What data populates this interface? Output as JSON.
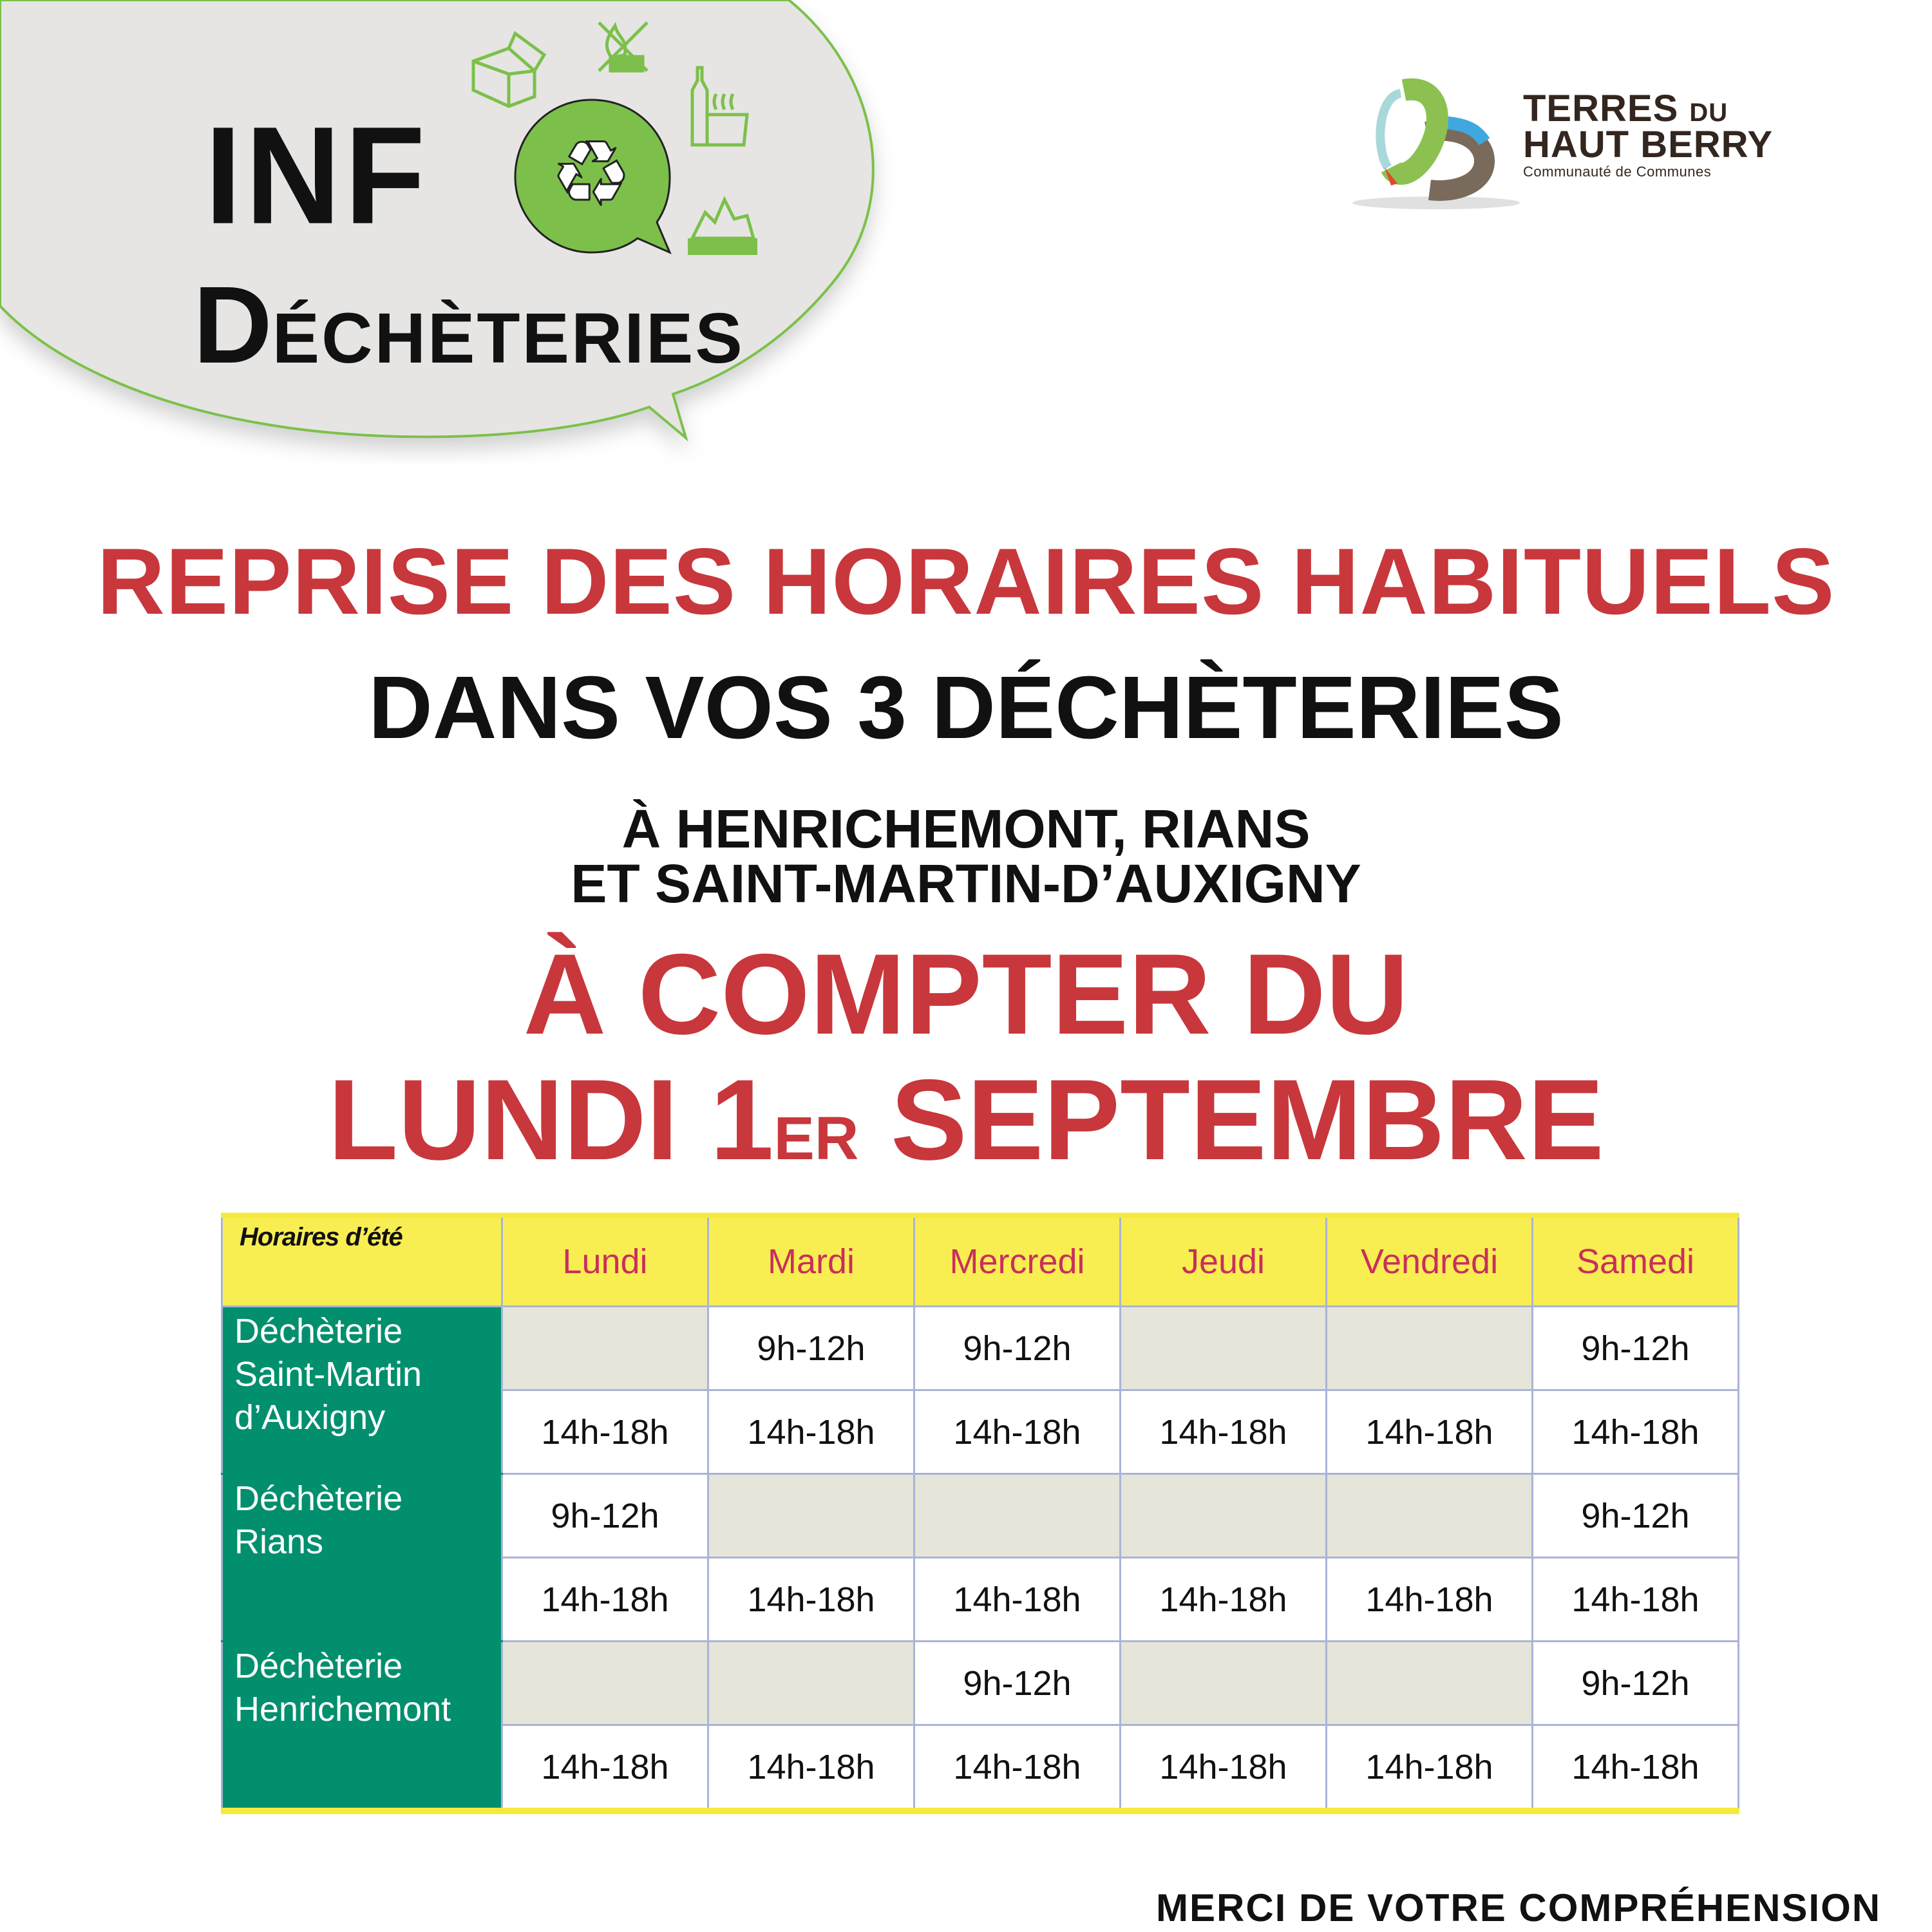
{
  "header": {
    "badge_line1": "INF",
    "badge_line2_first": "D",
    "badge_line2_rest": "ÉCHÈTERIES",
    "icons": [
      "cardboard-box-icon",
      "no-burning-icon",
      "bottle-pot-icon",
      "recycle-icon",
      "rubble-pile-icon"
    ],
    "bubble_fill": "#e6e5e3",
    "bubble_stroke": "#7cc04b",
    "icon_green": "#7cc04b"
  },
  "logo": {
    "line1": "TERRES",
    "line1_small": "DU",
    "line2": "HAUT BERRY",
    "line3": "Communauté de Communes"
  },
  "announcement": {
    "title": "REPRISE DES HORAIRES HABITUELS",
    "subtitle": "DANS VOS 3 DÉCHÈTERIES",
    "location_line1": "À HENRICHEMONT, RIANS",
    "location_line2": "ET SAINT-MARTIN-D’AUXIGNY",
    "date_line1": "À COMPTER DU",
    "date_line2_a": "LUNDI 1",
    "date_line2_sup": "ER",
    "date_line2_b": " SEPTEMBRE",
    "accent_color": "#c8373b"
  },
  "schedule": {
    "corner_label": "Horaires d’été",
    "days": [
      "Lundi",
      "Mardi",
      "Mercredi",
      "Jeudi",
      "Vendredi",
      "Samedi"
    ],
    "sites": [
      {
        "name": "Déchèterie Saint-Martin d’Auxigny",
        "morning": [
          "",
          "9h-12h",
          "9h-12h",
          "",
          "",
          "9h-12h"
        ],
        "afternoon": [
          "14h-18h",
          "14h-18h",
          "14h-18h",
          "14h-18h",
          "14h-18h",
          "14h-18h"
        ]
      },
      {
        "name": "Déchèterie Rians",
        "morning": [
          "9h-12h",
          "",
          "",
          "",
          "",
          "9h-12h"
        ],
        "afternoon": [
          "14h-18h",
          "14h-18h",
          "14h-18h",
          "14h-18h",
          "14h-18h",
          "14h-18h"
        ]
      },
      {
        "name": "Déchèterie Henrichemont",
        "morning": [
          "",
          "",
          "9h-12h",
          "",
          "",
          "9h-12h"
        ],
        "afternoon": [
          "14h-18h",
          "14h-18h",
          "14h-18h",
          "14h-18h",
          "14h-18h",
          "14h-18h"
        ]
      }
    ],
    "header_color": "#f8ee52",
    "site_color": "#018f6e",
    "closed_color": "#e6e5d9"
  },
  "footer": {
    "message": "MERCI DE VOTRE COMPRÉHENSION"
  }
}
